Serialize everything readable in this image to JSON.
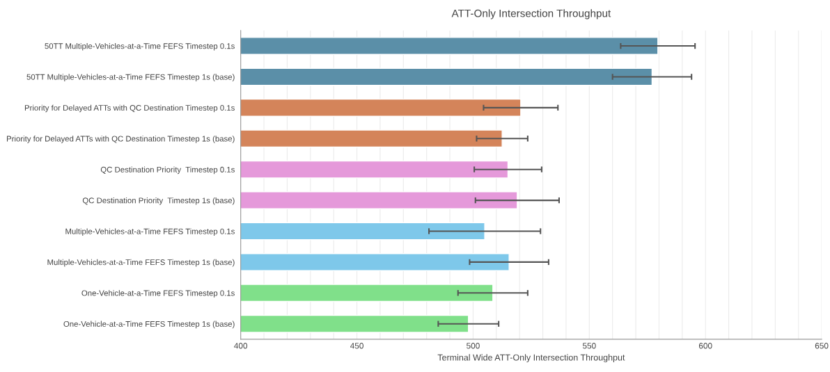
{
  "chart_data": {
    "type": "bar",
    "orientation": "horizontal",
    "title": "ATT-Only Intersection Throughput",
    "xlabel": "Terminal Wide ATT-Only Intersection Throughput",
    "categories": [
      "50TT Multiple-Vehicles-at-a-Time FEFS Timestep 0.1s",
      "50TT Multiple-Vehicles-at-a-Time FEFS Timestep 1s (base)",
      "Priority for Delayed ATTs with QC Destination Timestep 0.1s",
      "Priority for Delayed ATTs with QC Destination Timestep 1s (base)",
      "QC Destination Priority  Timestep 0.1s",
      "QC Destination Priority  Timestep 1s (base)",
      "Multiple-Vehicles-at-a-Time FEFS Timestep 0.1s",
      "Multiple-Vehicles-at-a-Time FEFS Timestep 1s (base)",
      "One-Vehicle-at-a-Time FEFS Timestep 0.1s",
      "One-Vehicle-at-a-Time FEFS Timestep 1s (base)"
    ],
    "values": [
      579.5,
      577,
      520.5,
      512.5,
      515,
      519,
      505,
      515.5,
      508.5,
      498
    ],
    "errors": [
      16,
      17,
      16,
      11,
      14.5,
      18,
      24,
      17,
      15,
      13
    ],
    "colors": [
      "#5b8fa8",
      "#5b8fa8",
      "#d4845a",
      "#d4845a",
      "#e599da",
      "#e599da",
      "#7ec8ea",
      "#7ec8ea",
      "#80e08a",
      "#80e08a"
    ],
    "xlim": [
      400,
      650
    ],
    "xticks": [
      400,
      {
        "value": 410,
        "label": null
      },
      {
        "value": 420,
        "label": null
      },
      {
        "value": 430,
        "label": null
      },
      {
        "value": 440,
        "label": null
      },
      450,
      {
        "value": 460,
        "label": null
      },
      {
        "value": 470,
        "label": null
      },
      {
        "value": 480,
        "label": null
      },
      {
        "value": 490,
        "label": null
      },
      500,
      {
        "value": 510,
        "label": null
      },
      {
        "value": 520,
        "label": null
      },
      {
        "value": 530,
        "label": null
      },
      {
        "value": 540,
        "label": null
      },
      550,
      {
        "value": 560,
        "label": null
      },
      {
        "value": 570,
        "label": null
      },
      {
        "value": 580,
        "label": null
      },
      {
        "value": 590,
        "label": null
      },
      600,
      {
        "value": 610,
        "label": null
      },
      {
        "value": 620,
        "label": null
      },
      {
        "value": 630,
        "label": null
      },
      {
        "value": 640,
        "label": null
      },
      650
    ],
    "grid": "x",
    "legend": false
  }
}
